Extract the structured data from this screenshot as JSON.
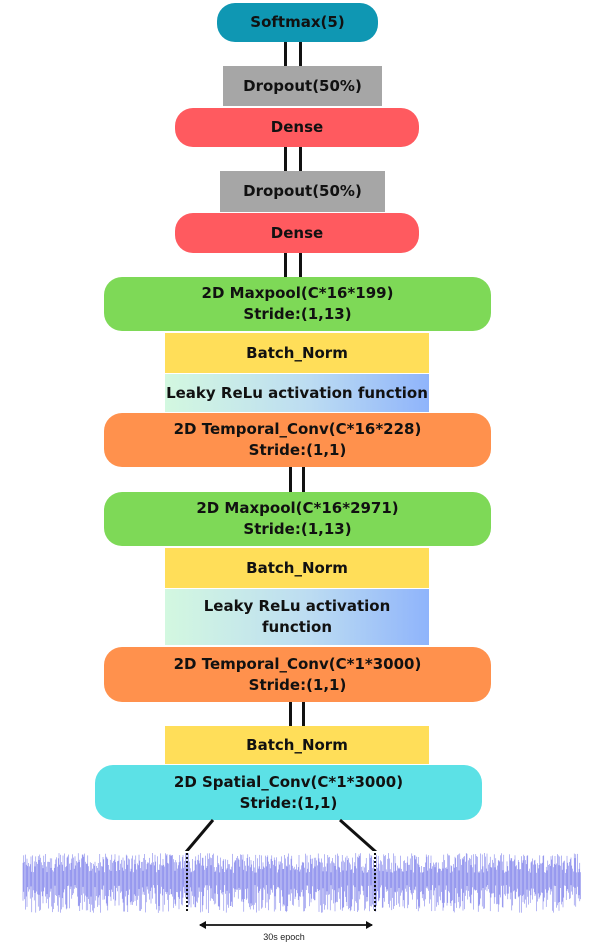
{
  "colors": {
    "softmax": "#0f97b3",
    "dropout": "#a6a6a6",
    "dense": "#ff5a5f",
    "maxpool": "#7ed957",
    "batch_norm": "#ffde59",
    "temporal_conv": "#ff914d",
    "spatial_conv": "#5ce1e6",
    "signal": "#3b3fe0"
  },
  "layers": {
    "softmax": "Softmax(5)",
    "dropout1": "Dropout(50%)",
    "dense1": "Dense",
    "dropout2": "Dropout(50%)",
    "dense2": "Dense",
    "maxpool1": {
      "line1": "2D Maxpool(C*16*199)",
      "line2": "Stride:(1,13)"
    },
    "batchnorm1": "Batch_Norm",
    "leaky1": "Leaky ReLu activation function",
    "tconv1": {
      "line1": "2D Temporal_Conv(C*16*228)",
      "line2": "Stride:(1,1)"
    },
    "maxpool2": {
      "line1": "2D Maxpool(C*16*2971)",
      "line2": "Stride:(1,13)"
    },
    "batchnorm2": "Batch_Norm",
    "leaky2": {
      "line1": "Leaky ReLu activation",
      "line2": "function"
    },
    "tconv2": {
      "line1": "2D Temporal_Conv(C*1*3000)",
      "line2": "Stride:(1,1)"
    },
    "batchnorm3": "Batch_Norm",
    "sconv": {
      "line1": "2D Spatial_Conv(C*1*3000)",
      "line2": "Stride:(1,1)"
    }
  },
  "epoch_label": "30s epoch"
}
